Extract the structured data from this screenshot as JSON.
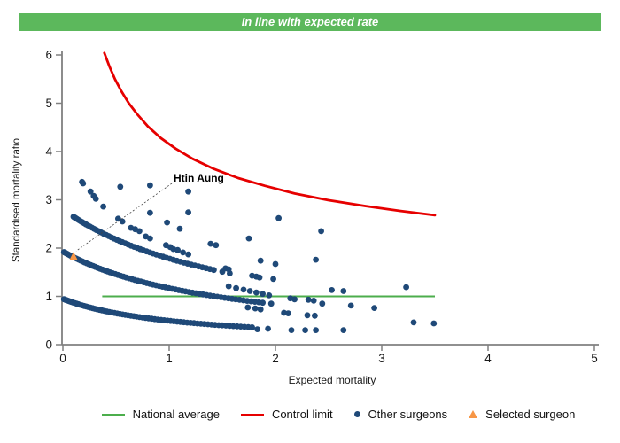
{
  "banner": {
    "text": "In line with expected rate",
    "background": "#5cb85c",
    "text_color": "#ffffff"
  },
  "colors": {
    "national_average": "#4cae4c",
    "control_limit": "#e60000",
    "other_surgeons": "#1f4978",
    "selected_surgeon": "#f79646",
    "axis": "#808080",
    "text": "#1a1a1a",
    "annotation_line": "#444444"
  },
  "chart_data": {
    "type": "scatter",
    "xlabel": "Expected mortality",
    "ylabel": "Standardised mortality ratio",
    "xlim": [
      0,
      5
    ],
    "ylim": [
      0,
      6
    ],
    "x_ticks": [
      0,
      1,
      2,
      3,
      4,
      5
    ],
    "y_ticks": [
      0,
      1,
      2,
      3,
      4,
      5,
      6
    ],
    "grid": false,
    "legend_position": "bottom",
    "national_average": {
      "value": 1,
      "x_from": 0.37,
      "x_to": 3.5
    },
    "control_limit": {
      "points": [
        [
          0.39,
          6.04
        ],
        [
          0.44,
          5.75
        ],
        [
          0.49,
          5.5
        ],
        [
          0.55,
          5.25
        ],
        [
          0.62,
          5.0
        ],
        [
          0.7,
          4.77
        ],
        [
          0.8,
          4.52
        ],
        [
          0.92,
          4.28
        ],
        [
          1.06,
          4.06
        ],
        [
          1.22,
          3.85
        ],
        [
          1.42,
          3.64
        ],
        [
          1.65,
          3.45
        ],
        [
          1.9,
          3.29
        ],
        [
          2.18,
          3.13
        ],
        [
          2.5,
          2.99
        ],
        [
          2.85,
          2.87
        ],
        [
          3.17,
          2.77
        ],
        [
          3.5,
          2.68
        ]
      ]
    },
    "selected_surgeon": {
      "name": "Htin Aung",
      "point": [
        0.1,
        1.83
      ]
    },
    "other_surgeons": {
      "bands": [
        {
          "v0": 0.95,
          "k": 0.92,
          "e_start": 0.01,
          "e_end": 1.78,
          "n": 70,
          "power": 1.4,
          "trail_e": []
        },
        {
          "v0": 1.93,
          "k": 0.65,
          "e_start": 0.01,
          "e_end": 1.88,
          "n": 72,
          "power": 1.4,
          "trail_e": [
            1.96
          ]
        },
        {
          "v0": 2.8,
          "k": 0.57,
          "e_start": 0.1,
          "e_end": 1.42,
          "n": 52,
          "power": 1.4,
          "trail_e": [
            1.5,
            1.57
          ]
        }
      ],
      "chains": [
        [
          [
            0.18,
            3.37
          ],
          [
            0.26,
            3.17
          ],
          [
            0.29,
            3.08
          ],
          [
            0.31,
            3.02
          ],
          [
            0.38,
            2.86
          ],
          [
            0.52,
            2.61
          ],
          [
            0.56,
            2.55
          ],
          [
            0.64,
            2.42
          ],
          [
            0.68,
            2.39
          ],
          [
            0.72,
            2.35
          ],
          [
            0.78,
            2.24
          ],
          [
            0.82,
            2.2
          ],
          [
            0.97,
            2.06
          ],
          [
            1.01,
            2.02
          ],
          [
            1.04,
            1.98
          ],
          [
            1.08,
            1.96
          ],
          [
            1.13,
            1.91
          ],
          [
            1.18,
            1.87
          ]
        ],
        [
          [
            1.56,
            1.21
          ],
          [
            1.63,
            1.17
          ],
          [
            1.7,
            1.14
          ],
          [
            1.76,
            1.11
          ],
          [
            1.82,
            1.08
          ],
          [
            1.88,
            1.05
          ],
          [
            1.94,
            1.02
          ]
        ]
      ],
      "scatter": [
        [
          0.19,
          3.34
        ],
        [
          0.54,
          3.27
        ],
        [
          0.82,
          3.3
        ],
        [
          1.18,
          3.17
        ],
        [
          1.18,
          2.74
        ],
        [
          0.82,
          2.73
        ],
        [
          0.98,
          2.53
        ],
        [
          1.1,
          2.4
        ],
        [
          2.03,
          2.62
        ],
        [
          2.43,
          2.35
        ],
        [
          1.75,
          2.2
        ],
        [
          1.39,
          2.09
        ],
        [
          1.44,
          2.06
        ],
        [
          2.38,
          1.76
        ],
        [
          1.86,
          1.74
        ],
        [
          2.0,
          1.67
        ],
        [
          1.53,
          1.58
        ],
        [
          1.56,
          1.56
        ],
        [
          1.78,
          1.43
        ],
        [
          1.82,
          1.41
        ],
        [
          1.85,
          1.39
        ],
        [
          1.98,
          1.36
        ],
        [
          2.53,
          1.13
        ],
        [
          2.64,
          1.11
        ],
        [
          3.23,
          1.19
        ],
        [
          2.14,
          0.96
        ],
        [
          2.18,
          0.94
        ],
        [
          2.31,
          0.93
        ],
        [
          2.36,
          0.91
        ],
        [
          2.44,
          0.85
        ],
        [
          2.71,
          0.81
        ],
        [
          2.93,
          0.76
        ],
        [
          1.74,
          0.77
        ],
        [
          1.81,
          0.75
        ],
        [
          1.86,
          0.73
        ],
        [
          2.08,
          0.66
        ],
        [
          2.12,
          0.65
        ],
        [
          2.3,
          0.61
        ],
        [
          2.37,
          0.6
        ],
        [
          1.83,
          0.32
        ],
        [
          1.93,
          0.33
        ],
        [
          2.15,
          0.3
        ],
        [
          2.28,
          0.3
        ],
        [
          2.38,
          0.3
        ],
        [
          2.64,
          0.3
        ],
        [
          3.3,
          0.46
        ],
        [
          3.49,
          0.44
        ]
      ]
    }
  },
  "legend": {
    "items": [
      {
        "label": "National average",
        "marker": "line"
      },
      {
        "label": "Control limit",
        "marker": "line"
      },
      {
        "label": "Other surgeons",
        "marker": "dot"
      },
      {
        "label": "Selected surgeon",
        "marker": "triangle"
      }
    ]
  }
}
